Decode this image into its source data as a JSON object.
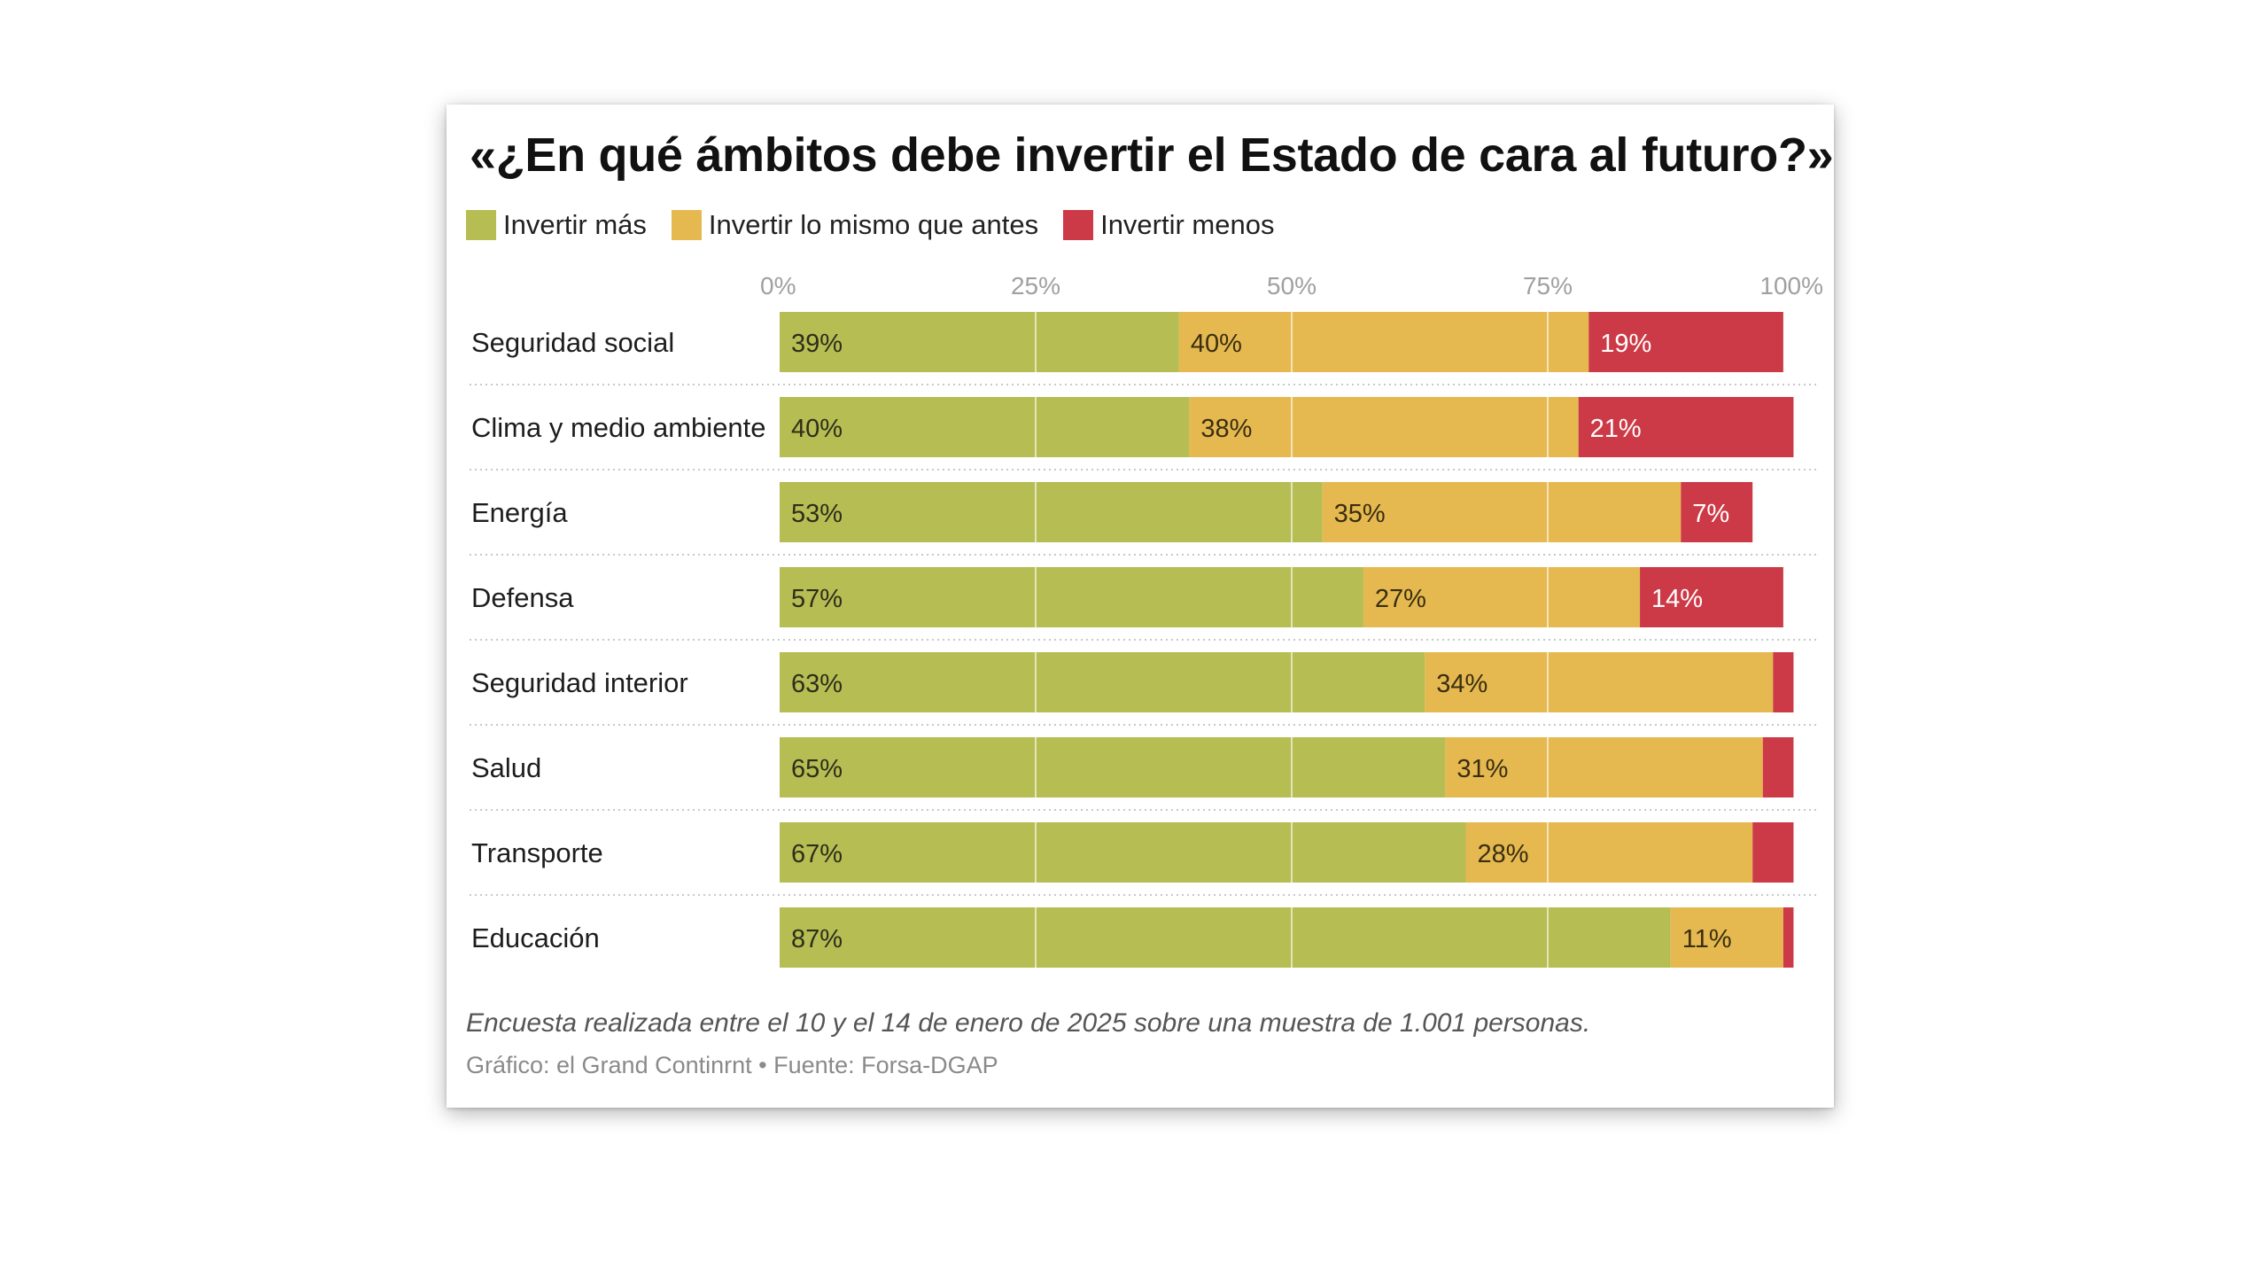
{
  "header": {
    "title": "«¿En qué ámbitos debe invertir el Estado de cara al futuro?»"
  },
  "legend": [
    {
      "label": "Invertir más",
      "color": "#b5bd53"
    },
    {
      "label": "Invertir lo mismo que antes",
      "color": "#e5b950"
    },
    {
      "label": "Invertir menos",
      "color": "#cd3a47"
    }
  ],
  "footer": {
    "note": "Encuesta realizada entre el 10 y el 14 de enero de 2025 sobre una muestra de 1.001 personas.",
    "credit": "Gráfico: el Grand Continrnt • Fuente: Forsa-DGAP"
  },
  "chart_data": {
    "type": "bar",
    "orientation": "horizontal",
    "stacked": true,
    "xlim": [
      0,
      100
    ],
    "xticks": [
      "0%",
      "25%",
      "50%",
      "75%",
      "100%"
    ],
    "categories": [
      "Seguridad social",
      "Clima y medio ambiente",
      "Energía",
      "Defensa",
      "Seguridad interior",
      "Salud",
      "Transporte",
      "Educación"
    ],
    "series": [
      {
        "name": "Invertir más",
        "color": "#b5bd53",
        "values": [
          39,
          40,
          53,
          57,
          63,
          65,
          67,
          87
        ],
        "labels": [
          "39%",
          "40%",
          "53%",
          "57%",
          "63%",
          "65%",
          "67%",
          "87%"
        ]
      },
      {
        "name": "Invertir lo mismo que antes",
        "color": "#e5b950",
        "values": [
          40,
          38,
          35,
          27,
          34,
          31,
          28,
          11
        ],
        "labels": [
          "40%",
          "38%",
          "35%",
          "27%",
          "34%",
          "31%",
          "28%",
          "11%"
        ]
      },
      {
        "name": "Invertir menos",
        "color": "#cd3a47",
        "values": [
          19,
          21,
          7,
          14,
          2,
          3,
          4,
          1
        ],
        "labels": [
          "19%",
          "21%",
          "7%",
          "14%",
          "",
          "",
          "",
          ""
        ]
      }
    ],
    "grid": true,
    "legend_position": "top-left"
  }
}
